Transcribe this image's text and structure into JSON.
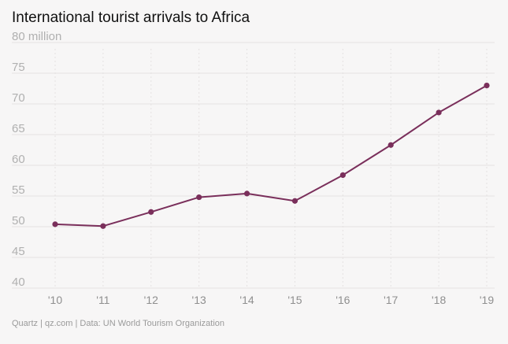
{
  "chart_data": {
    "type": "line",
    "title": "International tourist arrivals to Africa",
    "source": "Quartz | qz.com | Data: UN World Tourism Organization",
    "categories": [
      "'10",
      "'11",
      "'12",
      "'13",
      "'14",
      "'15",
      "'16",
      "'17",
      "'18",
      "'19"
    ],
    "series": [
      {
        "name": "International tourist arrivals (millions)",
        "values": [
          50.4,
          50.1,
          52.4,
          54.8,
          55.4,
          54.2,
          58.4,
          63.3,
          68.6,
          73.0
        ],
        "color": "#7a2f5b"
      }
    ],
    "y_ticks": [
      40,
      45,
      50,
      55,
      60,
      65,
      70,
      75,
      80
    ],
    "y_tick_labels": [
      "40",
      "45",
      "50",
      "55",
      "60",
      "65",
      "70",
      "75",
      "80 million"
    ],
    "ylim": [
      40,
      80
    ],
    "xlabel": "",
    "ylabel": "",
    "grid": true
  }
}
